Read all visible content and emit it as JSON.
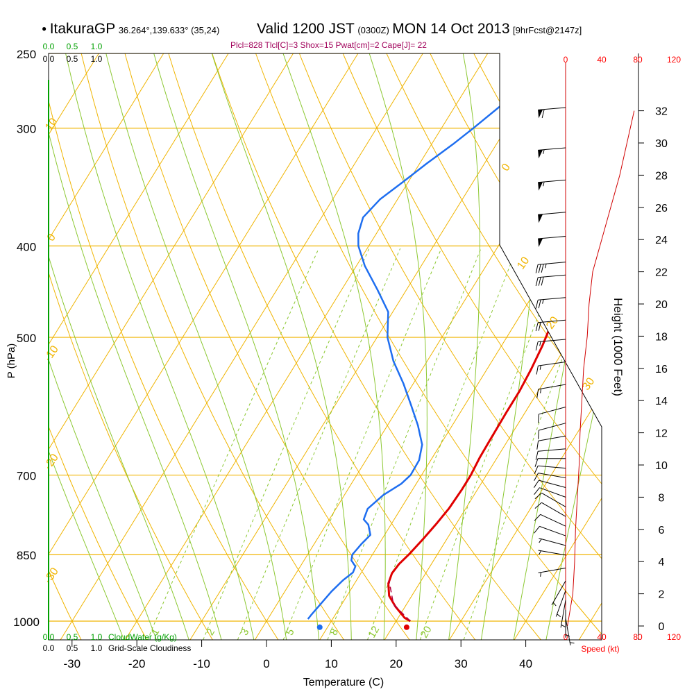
{
  "header": {
    "station": "ItakuraGP",
    "coords": "36.264°,139.633° (35,24)",
    "valid": "Valid 1200 JST",
    "zulu": "(0300Z)",
    "date": "MON 14 Oct 2013",
    "forecast": "[9hrFcst@2147z]"
  },
  "indices": "Plcl=828 Tlcl[C]=3 Shox=15 Pwat[cm]=2 Cape[J]= 22",
  "colors": {
    "isotherm": "#f0b400",
    "dry_adiabat": "#f0b400",
    "moist_adiabat": "#8cc832",
    "mixing_ratio": "#8cc832",
    "temperature": "#e00000",
    "dewpoint": "#1e6ef0",
    "parcel": "#b4003c",
    "cloud_water": "#00a000",
    "height": "#d00000",
    "indices_text": "#a0005a",
    "speed_axis": "#ff0000"
  },
  "chart_data": {
    "type": "line",
    "title": "ItakuraGP Valid 1200 JST MON 14 Oct 2013",
    "xlabel": "Temperature (C)",
    "ylabel": "P (hPa)",
    "xlim": [
      -35,
      45
    ],
    "ylim": [
      1020,
      250
    ],
    "y_scale": "log-pressure",
    "grid": true,
    "x_ticks": [
      "-30",
      "-20",
      "-10",
      "0",
      "10",
      "20",
      "30",
      "40"
    ],
    "pressure_ticks": [
      "250",
      "300",
      "400",
      "500",
      "700",
      "850",
      "1000"
    ],
    "isotherm_labels": [
      "10",
      "0",
      "-10",
      "-20",
      "-30",
      "0",
      "10",
      "20",
      "30"
    ],
    "mixing_ratio_labels": [
      "1",
      "2",
      "3",
      "5",
      "8",
      "12",
      "20"
    ],
    "cloud_scale_top": {
      "green": [
        "0.0",
        "0.5",
        "1.0"
      ],
      "black": [
        "0.0",
        "0.5",
        "1.0"
      ]
    },
    "cloud_scale_bottom": {
      "green": [
        "0.0",
        "0.5",
        "1.0"
      ],
      "green_label": "CloudWater (g/Kg)",
      "black": [
        "0.0",
        "0.5",
        "1.0"
      ],
      "black_label": "Grid-Scale Cloudiness"
    },
    "series": [
      {
        "name": "",
        "kind": "temperature",
        "points": [
          [
            22.2,
            1000
          ],
          [
            21.0,
            992
          ],
          [
            18.5,
            965
          ],
          [
            16.5,
            940
          ],
          [
            15.2,
            912
          ],
          [
            14.8,
            890
          ],
          [
            15.0,
            870
          ],
          [
            15.6,
            850
          ],
          [
            16.3,
            820
          ],
          [
            16.9,
            790
          ],
          [
            17.4,
            760
          ],
          [
            17.6,
            725
          ],
          [
            17.6,
            700
          ],
          [
            17.3,
            670
          ],
          [
            17.2,
            640
          ],
          [
            17.1,
            600
          ],
          [
            17.1,
            570
          ],
          [
            16.8,
            540
          ],
          [
            16.3,
            510
          ],
          [
            15.5,
            480
          ],
          [
            14.3,
            450
          ],
          [
            12.6,
            415
          ],
          [
            10.8,
            385
          ],
          [
            9.3,
            360
          ],
          [
            7.8,
            335
          ],
          [
            6.3,
            310
          ],
          [
            4.9,
            290
          ],
          [
            4.0,
            275
          ],
          [
            3.6,
            265
          ]
        ]
      },
      {
        "name": "",
        "kind": "dewpoint",
        "points": [
          [
            6.2,
            995
          ],
          [
            6.3,
            985
          ],
          [
            6.7,
            960
          ],
          [
            7.2,
            930
          ],
          [
            7.9,
            905
          ],
          [
            8.7,
            888
          ],
          [
            8.5,
            875
          ],
          [
            7.3,
            862
          ],
          [
            6.9,
            850
          ],
          [
            7.3,
            828
          ],
          [
            7.8,
            810
          ],
          [
            6.5,
            790
          ],
          [
            5.3,
            780
          ],
          [
            4.9,
            760
          ],
          [
            6.0,
            735
          ],
          [
            7.7,
            715
          ],
          [
            8.3,
            700
          ],
          [
            8.2,
            675
          ],
          [
            7.2,
            650
          ],
          [
            4.7,
            620
          ],
          [
            1.7,
            590
          ],
          [
            -1.5,
            560
          ],
          [
            -5.2,
            530
          ],
          [
            -8.4,
            500
          ],
          [
            -10.7,
            470
          ],
          [
            -14.5,
            445
          ],
          [
            -18.7,
            420
          ],
          [
            -21.6,
            400
          ],
          [
            -22.8,
            388
          ],
          [
            -23.6,
            373
          ],
          [
            -22.7,
            357
          ],
          [
            -20.8,
            342
          ],
          [
            -18.9,
            327
          ],
          [
            -16.7,
            312
          ],
          [
            -15.1,
            300
          ],
          [
            -13.4,
            287
          ],
          [
            -11.6,
            274
          ],
          [
            -11.5,
            265
          ]
        ]
      },
      {
        "name": "",
        "kind": "parcel",
        "points": [
          [
            22.2,
            1000
          ],
          [
            18.0,
            960
          ],
          [
            15.0,
            905
          ]
        ]
      }
    ],
    "surface_temperature_c": 22.2,
    "surface_dewpoint_c": 8.8,
    "wind_speed_axis": {
      "ticks": [
        "0",
        "40",
        "80",
        "120"
      ],
      "label": "Speed (kt)"
    },
    "height_axis": {
      "label": "Height (1000 Feet)",
      "ticks": [
        "0",
        "2",
        "4",
        "6",
        "8",
        "10",
        "12",
        "14",
        "16",
        "18",
        "20",
        "22",
        "24",
        "26",
        "28",
        "30",
        "32"
      ]
    },
    "wind_speed_profile": [
      [
        2,
        0
      ],
      [
        5,
        1
      ],
      [
        8,
        2
      ],
      [
        10,
        4
      ],
      [
        11,
        6
      ],
      [
        13,
        8
      ],
      [
        15,
        10
      ],
      [
        16,
        12
      ],
      [
        18,
        14
      ],
      [
        20,
        16
      ],
      [
        24,
        18
      ],
      [
        26,
        20
      ],
      [
        30,
        22
      ],
      [
        40,
        24
      ],
      [
        50,
        26
      ],
      [
        60,
        28
      ],
      [
        68,
        30
      ],
      [
        76,
        32
      ]
    ],
    "wind_barbs": [
      {
        "height_kft": 0.5,
        "direction_deg": 170,
        "speed_kt": 5
      },
      {
        "height_kft": 1.0,
        "direction_deg": 180,
        "speed_kt": 5
      },
      {
        "height_kft": 1.6,
        "direction_deg": 190,
        "speed_kt": 5
      },
      {
        "height_kft": 2.2,
        "direction_deg": 200,
        "speed_kt": 5
      },
      {
        "height_kft": 2.8,
        "direction_deg": 210,
        "speed_kt": 5
      },
      {
        "height_kft": 3.6,
        "direction_deg": 260,
        "speed_kt": 5
      },
      {
        "height_kft": 4.4,
        "direction_deg": 280,
        "speed_kt": 5
      },
      {
        "height_kft": 5.0,
        "direction_deg": 285,
        "speed_kt": 5
      },
      {
        "height_kft": 5.6,
        "direction_deg": 290,
        "speed_kt": 10
      },
      {
        "height_kft": 6.2,
        "direction_deg": 295,
        "speed_kt": 10
      },
      {
        "height_kft": 6.8,
        "direction_deg": 300,
        "speed_kt": 10
      },
      {
        "height_kft": 7.4,
        "direction_deg": 300,
        "speed_kt": 10
      },
      {
        "height_kft": 8.0,
        "direction_deg": 290,
        "speed_kt": 10
      },
      {
        "height_kft": 8.6,
        "direction_deg": 285,
        "speed_kt": 10
      },
      {
        "height_kft": 9.2,
        "direction_deg": 280,
        "speed_kt": 10
      },
      {
        "height_kft": 9.8,
        "direction_deg": 275,
        "speed_kt": 10
      },
      {
        "height_kft": 10.4,
        "direction_deg": 270,
        "speed_kt": 10
      },
      {
        "height_kft": 11.0,
        "direction_deg": 265,
        "speed_kt": 10
      },
      {
        "height_kft": 11.8,
        "direction_deg": 260,
        "speed_kt": 10
      },
      {
        "height_kft": 12.6,
        "direction_deg": 255,
        "speed_kt": 10
      },
      {
        "height_kft": 13.6,
        "direction_deg": 255,
        "speed_kt": 10
      },
      {
        "height_kft": 15.0,
        "direction_deg": 260,
        "speed_kt": 15
      },
      {
        "height_kft": 16.4,
        "direction_deg": 262,
        "speed_kt": 15
      },
      {
        "height_kft": 17.8,
        "direction_deg": 265,
        "speed_kt": 15
      },
      {
        "height_kft": 19.0,
        "direction_deg": 265,
        "speed_kt": 20
      },
      {
        "height_kft": 20.4,
        "direction_deg": 265,
        "speed_kt": 25
      },
      {
        "height_kft": 21.8,
        "direction_deg": 265,
        "speed_kt": 30
      },
      {
        "height_kft": 22.6,
        "direction_deg": 265,
        "speed_kt": 35
      },
      {
        "height_kft": 24.2,
        "direction_deg": 265,
        "speed_kt": 50
      },
      {
        "height_kft": 25.7,
        "direction_deg": 265,
        "speed_kt": 50
      },
      {
        "height_kft": 27.7,
        "direction_deg": 265,
        "speed_kt": 55
      },
      {
        "height_kft": 29.7,
        "direction_deg": 265,
        "speed_kt": 55
      },
      {
        "height_kft": 32.2,
        "direction_deg": 265,
        "speed_kt": 60
      }
    ]
  }
}
